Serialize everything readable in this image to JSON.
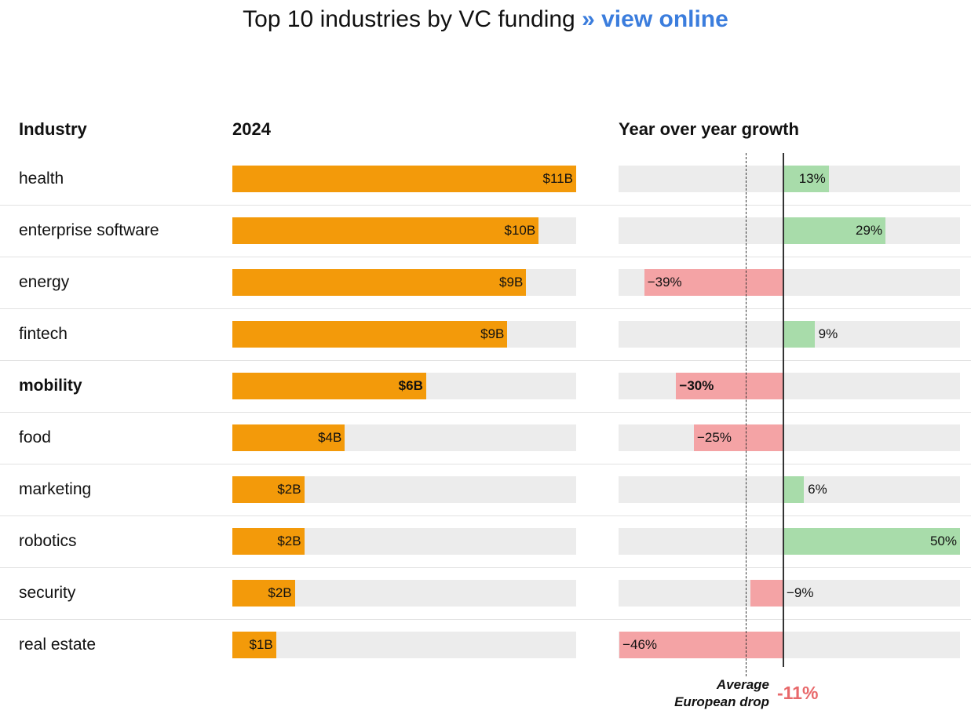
{
  "title": {
    "text": "Top 10 industries by VC funding ",
    "link": "» view online"
  },
  "chart_data": {
    "type": "bar",
    "columns": {
      "industry": "Industry",
      "funding": "2024",
      "growth": "Year over year growth"
    },
    "funding_max": 11,
    "growth_range": [
      -46,
      50
    ],
    "colors": {
      "funding": "#f39a0a",
      "positive": "#a8dcaa",
      "negative": "#f4a3a5",
      "track": "#ececec",
      "link": "#3b7ddd",
      "average": "#e8696b"
    },
    "rows": [
      {
        "industry": "health",
        "funding": 11.0,
        "funding_label": "$11B",
        "growth": 13,
        "growth_label": "13%"
      },
      {
        "industry": "enterprise software",
        "funding": 9.8,
        "funding_label": "$10B",
        "growth": 29,
        "growth_label": "29%"
      },
      {
        "industry": "energy",
        "funding": 9.4,
        "funding_label": "$9B",
        "growth": -39,
        "growth_label": "−39%"
      },
      {
        "industry": "fintech",
        "funding": 8.8,
        "funding_label": "$9B",
        "growth": 9,
        "growth_label": "9%"
      },
      {
        "industry": "mobility",
        "funding": 6.2,
        "funding_label": "$6B",
        "growth": -30,
        "growth_label": "−30%",
        "highlight": true
      },
      {
        "industry": "food",
        "funding": 3.6,
        "funding_label": "$4B",
        "growth": -25,
        "growth_label": "−25%"
      },
      {
        "industry": "marketing",
        "funding": 2.3,
        "funding_label": "$2B",
        "growth": 6,
        "growth_label": "6%"
      },
      {
        "industry": "robotics",
        "funding": 2.3,
        "funding_label": "$2B",
        "growth": 50,
        "growth_label": "50%"
      },
      {
        "industry": "security",
        "funding": 2.0,
        "funding_label": "$2B",
        "growth": -9,
        "growth_label": "−9%"
      },
      {
        "industry": "real estate",
        "funding": 1.4,
        "funding_label": "$1B",
        "growth": -46,
        "growth_label": "−46%"
      }
    ],
    "average": {
      "value": -11,
      "label_line1": "Average",
      "label_line2": "European drop",
      "value_label": "-11%"
    }
  }
}
